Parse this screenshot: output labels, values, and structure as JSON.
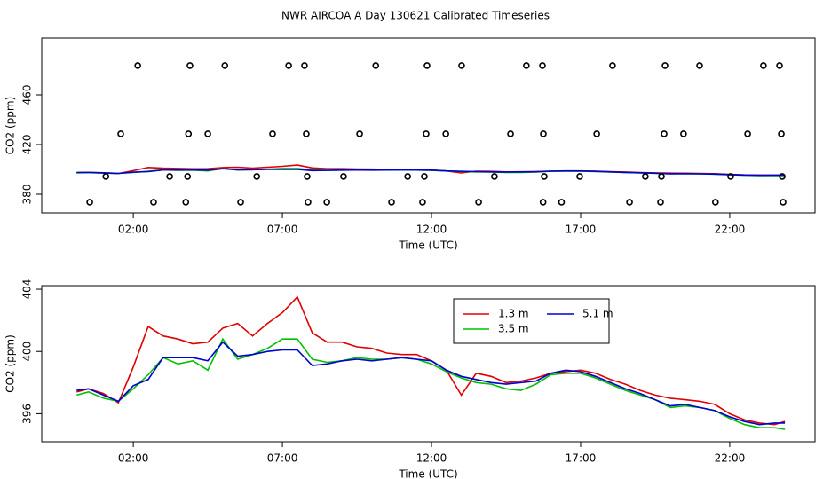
{
  "chart_data": [
    {
      "type": "scatter",
      "title": "NWR AIRCOA A  Day 130621  Calibrated Timeseries",
      "xlabel": "Time (UTC)",
      "ylabel": "CO2 (ppm)",
      "xlim": [
        -1.07,
        24.86
      ],
      "ylim": [
        365,
        505.7
      ],
      "xticks": [
        {
          "value": 2,
          "label": "02:00"
        },
        {
          "value": 7,
          "label": "07:00"
        },
        {
          "value": 12,
          "label": "12:00"
        },
        {
          "value": 17,
          "label": "17:00"
        },
        {
          "value": 22,
          "label": "22:00"
        }
      ],
      "yticks": [
        380,
        420,
        460
      ],
      "series": [
        {
          "color": "#000000",
          "x": [
            2.15,
            3.9,
            5.07,
            7.21,
            7.74,
            10.13,
            11.85,
            13.01,
            15.18,
            15.72,
            18.07,
            19.83,
            20.99,
            23.13,
            23.67,
            1.58,
            3.85,
            4.5,
            6.67,
            7.8,
            9.59,
            11.82,
            12.48,
            14.65,
            15.75,
            17.54,
            19.8,
            20.45,
            22.6,
            23.73,
            1.08,
            3.22,
            3.82,
            6.14,
            7.83,
            9.05,
            11.2,
            11.76,
            14.11,
            15.78,
            16.97,
            19.17,
            19.71,
            22.03,
            23.76,
            0.54,
            2.68,
            3.76,
            5.6,
            7.86,
            8.49,
            10.66,
            11.7,
            13.58,
            15.74,
            16.36,
            18.64,
            19.68,
            21.52,
            23.79
          ],
          "values": [
            483.6,
            483.6,
            483.6,
            483.6,
            483.6,
            483.6,
            483.6,
            483.6,
            483.6,
            483.6,
            483.6,
            483.6,
            483.6,
            483.6,
            483.6,
            428.6,
            428.6,
            428.6,
            428.6,
            428.6,
            428.6,
            428.6,
            428.6,
            428.6,
            428.6,
            428.6,
            428.6,
            428.6,
            428.6,
            428.6,
            394.3,
            394.3,
            394.3,
            394.3,
            394.3,
            394.3,
            394.3,
            394.3,
            394.3,
            394.3,
            394.3,
            394.3,
            394.3,
            394.3,
            394.3,
            373.6,
            373.6,
            373.6,
            373.6,
            373.6,
            373.6,
            373.6,
            373.6,
            373.6,
            373.6,
            373.6,
            373.6,
            373.6,
            373.6,
            373.6
          ]
        }
      ]
    },
    {
      "type": "line",
      "xlabel": "Time (UTC)",
      "ylabel": "CO2 (ppm)",
      "xlim": [
        -1.07,
        24.86
      ],
      "ylim": [
        394.2,
        404.23
      ],
      "xticks": [
        {
          "value": 2,
          "label": "02:00"
        },
        {
          "value": 7,
          "label": "07:00"
        },
        {
          "value": 12,
          "label": "12:00"
        },
        {
          "value": 17,
          "label": "17:00"
        },
        {
          "value": 22,
          "label": "22:00"
        }
      ],
      "yticks": [
        396,
        400,
        404
      ],
      "legend": "top-center",
      "x": [
        0.1,
        0.5,
        1,
        1.5,
        2,
        2.5,
        3,
        3.5,
        4,
        4.5,
        5,
        5.5,
        6,
        6.5,
        7,
        7.5,
        8,
        8.5,
        9,
        9.5,
        10,
        10.5,
        11,
        11.5,
        12,
        12.5,
        13,
        13.5,
        14,
        14.5,
        15,
        15.5,
        16,
        16.5,
        17,
        17.5,
        18,
        18.5,
        19,
        19.5,
        20,
        20.5,
        21,
        21.5,
        22,
        22.5,
        23,
        23.5,
        23.85
      ],
      "series": [
        {
          "name": "1.3 m",
          "color": "#e00000",
          "values": [
            397.4,
            397.6,
            397.3,
            396.7,
            399.0,
            401.6,
            401.0,
            400.8,
            400.5,
            400.6,
            401.5,
            401.8,
            401.0,
            401.8,
            402.5,
            403.5,
            401.2,
            400.6,
            400.6,
            400.3,
            400.2,
            399.9,
            399.8,
            399.8,
            399.4,
            398.8,
            397.2,
            398.6,
            398.4,
            398.0,
            398.1,
            398.3,
            398.6,
            398.7,
            398.8,
            398.6,
            398.2,
            397.9,
            397.5,
            397.2,
            397.0,
            396.9,
            396.8,
            396.6,
            396.0,
            395.6,
            395.4,
            395.3,
            395.5
          ]
        },
        {
          "name": "3.5 m",
          "color": "#00c000",
          "values": [
            397.2,
            397.4,
            397.0,
            396.8,
            397.6,
            398.5,
            399.6,
            399.2,
            399.4,
            398.8,
            400.8,
            399.5,
            399.8,
            400.2,
            400.8,
            400.8,
            399.5,
            399.3,
            399.4,
            399.6,
            399.5,
            399.5,
            399.6,
            399.5,
            399.2,
            398.7,
            398.3,
            398.0,
            397.9,
            397.6,
            397.5,
            397.9,
            398.5,
            398.6,
            398.6,
            398.3,
            397.9,
            397.5,
            397.2,
            396.9,
            396.4,
            396.5,
            396.4,
            396.2,
            395.7,
            395.3,
            395.1,
            395.1,
            395.0
          ]
        },
        {
          "name": "5.1 m",
          "color": "#0000d0",
          "values": [
            397.5,
            397.6,
            397.2,
            396.8,
            397.8,
            398.2,
            399.6,
            399.6,
            399.6,
            399.4,
            400.6,
            399.7,
            399.8,
            400.0,
            400.1,
            400.1,
            399.1,
            399.2,
            399.4,
            399.5,
            399.4,
            399.5,
            399.6,
            399.5,
            399.4,
            398.8,
            398.4,
            398.2,
            398.0,
            397.9,
            398.0,
            398.1,
            398.6,
            398.8,
            398.7,
            398.4,
            398.0,
            397.6,
            397.3,
            396.9,
            396.5,
            396.6,
            396.4,
            396.2,
            395.8,
            395.5,
            395.3,
            395.4,
            395.4
          ]
        }
      ]
    }
  ]
}
